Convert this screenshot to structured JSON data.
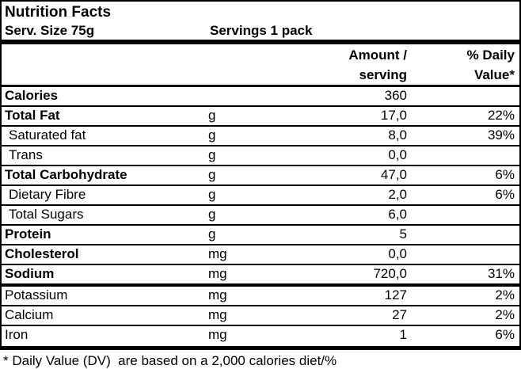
{
  "header": {
    "title": "Nutrition Facts",
    "serving_size": "Serv. Size 75g",
    "servings": "Servings 1 pack"
  },
  "columns": {
    "amount_line1": "Amount /",
    "amount_line2": "serving",
    "daily_value_line1": "% Daily",
    "daily_value_line2": "Value*"
  },
  "rows": [
    {
      "name": "Calories",
      "unit": "",
      "amount": "360",
      "daily_value": ""
    },
    {
      "name": "Total Fat",
      "unit": "g",
      "amount": "17,0",
      "daily_value": "22%"
    },
    {
      "name": "Saturated fat",
      "unit": "g",
      "amount": "8,0",
      "daily_value": "39%"
    },
    {
      "name": "Trans",
      "unit": "g",
      "amount": "0,0",
      "daily_value": ""
    },
    {
      "name": "Total Carbohydrate",
      "unit": "g",
      "amount": "47,0",
      "daily_value": "6%"
    },
    {
      "name": "Dietary Fibre",
      "unit": "g",
      "amount": "2,0",
      "daily_value": "6%"
    },
    {
      "name": "Total Sugars",
      "unit": "g",
      "amount": "6,0",
      "daily_value": ""
    },
    {
      "name": "Protein",
      "unit": "g",
      "amount": "5",
      "daily_value": ""
    },
    {
      "name": "Cholesterol",
      "unit": "mg",
      "amount": "0,0",
      "daily_value": ""
    },
    {
      "name": "Sodium",
      "unit": "mg",
      "amount": "720,0",
      "daily_value": "31%"
    },
    {
      "name": "Potassium",
      "unit": "mg",
      "amount": "127",
      "daily_value": "2%"
    },
    {
      "name": "Calcium",
      "unit": "mg",
      "amount": "27",
      "daily_value": "2%"
    },
    {
      "name": "Iron",
      "unit": "mg",
      "amount": "1",
      "daily_value": "6%"
    }
  ],
  "footnote": "* Daily Value (DV)  are based on a 2,000 calories diet/%",
  "colors": {
    "text": "#000000",
    "background": "#ffffff",
    "rule": "#000000"
  }
}
